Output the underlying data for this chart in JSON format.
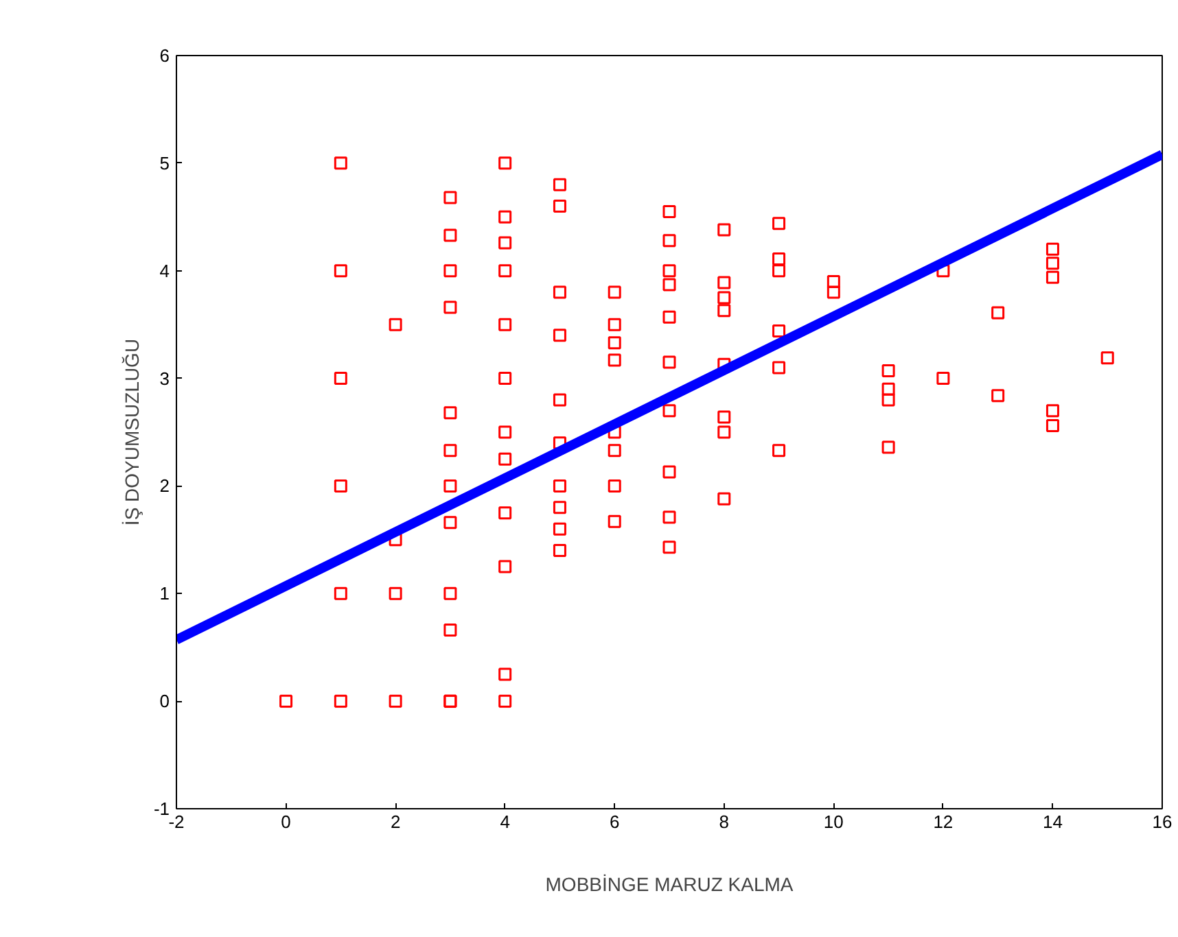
{
  "chart_data": {
    "type": "scatter",
    "xlabel": "MOBBİNGE MARUZ KALMA",
    "ylabel": "İŞ DOYUMSUZLUĞU",
    "xlim": [
      -2,
      16
    ],
    "ylim": [
      -1,
      6
    ],
    "xticks": [
      -2,
      0,
      2,
      4,
      6,
      8,
      10,
      12,
      14,
      16
    ],
    "yticks": [
      -1,
      0,
      1,
      2,
      3,
      4,
      5,
      6
    ],
    "grid": false,
    "series": [
      {
        "marker": "square",
        "color": "#ff0000",
        "x": [
          0,
          1,
          1,
          1,
          1,
          1,
          1,
          2,
          2,
          2,
          2,
          3,
          3,
          3,
          3,
          3,
          3,
          3,
          3,
          3,
          3,
          3,
          3,
          4,
          4,
          4,
          4,
          4,
          4,
          4,
          4,
          4,
          4,
          4,
          4,
          5,
          5,
          5,
          5,
          5,
          5,
          5,
          5,
          5,
          5,
          6,
          6,
          6,
          6,
          6,
          6,
          6,
          6,
          7,
          7,
          7,
          7,
          7,
          7,
          7,
          7,
          7,
          7,
          8,
          8,
          8,
          8,
          8,
          8,
          8,
          8,
          9,
          9,
          9,
          9,
          9,
          9,
          10,
          10,
          11,
          11,
          11,
          11,
          12,
          12,
          13,
          13,
          14,
          14,
          14,
          14,
          14,
          15
        ],
        "values": [
          0,
          5,
          4,
          3,
          2,
          1,
          0,
          3.5,
          1.5,
          1,
          0,
          4.68,
          4.33,
          4,
          3.66,
          2.68,
          2.33,
          2,
          1.66,
          1,
          0.66,
          0,
          0,
          5,
          4.5,
          4.26,
          4,
          3.5,
          3,
          2.5,
          2.25,
          1.75,
          1.25,
          0.25,
          0,
          4.8,
          4.6,
          3.8,
          3.4,
          2.8,
          2.4,
          2,
          1.8,
          1.6,
          1.4,
          3.8,
          3.5,
          3.33,
          3.17,
          2.5,
          2.33,
          2,
          1.67,
          4.55,
          4.28,
          4,
          3.87,
          3.57,
          3.15,
          2.7,
          2.13,
          1.71,
          1.43,
          4.38,
          3.89,
          3.75,
          3.63,
          3.13,
          2.64,
          2.5,
          1.88,
          4.44,
          4.11,
          4,
          3.44,
          3.1,
          2.33,
          3.9,
          3.8,
          3.07,
          2.9,
          2.8,
          2.36,
          4,
          3,
          3.61,
          2.84,
          4.2,
          4.07,
          3.94,
          2.7,
          2.56,
          3.19
        ]
      },
      {
        "type": "line",
        "color": "#0000ff",
        "x": [
          -2,
          16
        ],
        "values": [
          0.57,
          5.08
        ]
      }
    ]
  }
}
